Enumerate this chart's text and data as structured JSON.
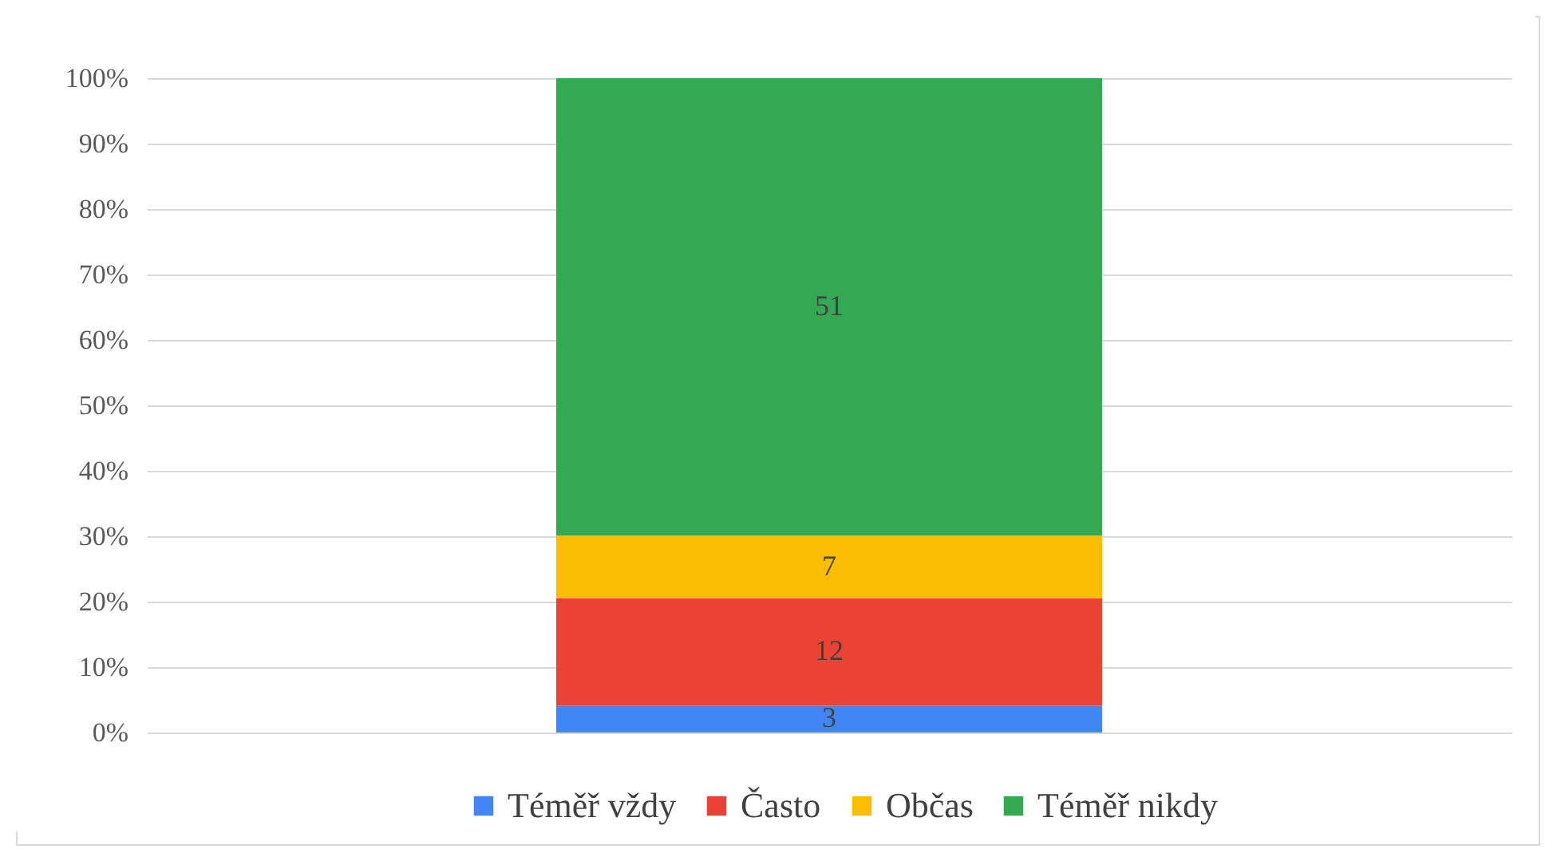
{
  "chart_data": {
    "type": "bar",
    "stacked": true,
    "categories": [
      null
    ],
    "series": [
      {
        "name": "Téměř vždy",
        "color": "#4285f4",
        "values": [
          4.1
        ]
      },
      {
        "name": "Často",
        "color": "#ea4335",
        "values": [
          16.4
        ]
      },
      {
        "name": "Občas",
        "color": "#fbbc04",
        "values": [
          9.6
        ]
      },
      {
        "name": "Téměř nikdy",
        "color": "#34a853",
        "values": [
          69.9
        ]
      }
    ],
    "ylim": [
      0,
      100
    ],
    "yticks": [
      {
        "value": 0,
        "label": "0%"
      },
      {
        "value": 10,
        "label": "10%"
      },
      {
        "value": 20,
        "label": "20%"
      },
      {
        "value": 30,
        "label": "30%"
      },
      {
        "value": 40,
        "label": "40%"
      },
      {
        "value": 50,
        "label": "50%"
      },
      {
        "value": 60,
        "label": "60%"
      },
      {
        "value": 70,
        "label": "70%"
      },
      {
        "value": 80,
        "label": "80%"
      },
      {
        "value": 90,
        "label": "90%"
      },
      {
        "value": 100,
        "label": "100%"
      }
    ],
    "annotations": [
      "3",
      "12",
      "7",
      "51"
    ],
    "grid": "y",
    "legend": "bottom",
    "tick_labels": "y"
  }
}
